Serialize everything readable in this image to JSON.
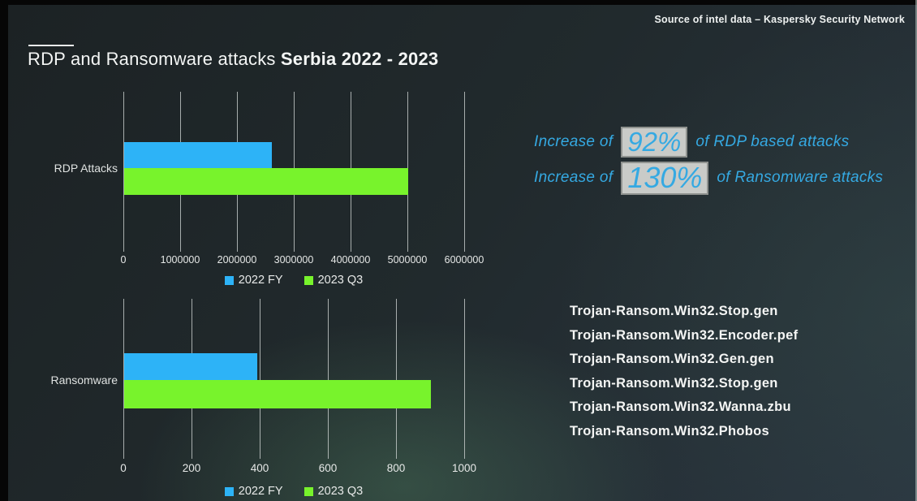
{
  "header": {
    "title_regular": "RDP and Ransomware attacks ",
    "title_bold": "Serbia 2022 - 2023",
    "source_note": "Source of intel data – Kaspersky Security Network"
  },
  "highlights": [
    {
      "prefix": "Increase of",
      "value": "92%",
      "suffix": "of RDP based attacks"
    },
    {
      "prefix": "Increase of",
      "value": "130%",
      "suffix": "of Ransomware attacks"
    }
  ],
  "trojan_list": [
    "Trojan-Ransom.Win32.Stop.gen",
    "Trojan-Ransom.Win32.Encoder.pef",
    "Trojan-Ransom.Win32.Gen.gen",
    "Trojan-Ransom.Win32.Stop.gen",
    "Trojan-Ransom.Win32.Wanna.zbu",
    "Trojan-Ransom.Win32.Phobos"
  ],
  "colors": {
    "bar_2022": "#2db3f7",
    "bar_2023": "#78f32c",
    "accent_text": "#35a9e2",
    "highlight_box_bg": "#c9cbc8",
    "highlight_box_border": "#8f928f"
  },
  "chart_data": [
    {
      "type": "bar",
      "orientation": "horizontal",
      "category": "RDP Attacks",
      "series": [
        {
          "name": "2022 FY",
          "value": 2600000
        },
        {
          "name": "2023 Q3",
          "value": 5000000
        }
      ],
      "xlim": [
        0,
        6000000
      ],
      "xticks": [
        "0",
        "1000000",
        "2000000",
        "3000000",
        "4000000",
        "5000000",
        "6000000"
      ],
      "grid": true,
      "legend": [
        "2022 FY",
        "2023 Q3"
      ],
      "legend_position": "bottom"
    },
    {
      "type": "bar",
      "orientation": "horizontal",
      "category": "Ransomware",
      "series": [
        {
          "name": "2022 FY",
          "value": 390
        },
        {
          "name": "2023 Q3",
          "value": 900
        }
      ],
      "xlim": [
        0,
        1000
      ],
      "xticks": [
        "0",
        "200",
        "400",
        "600",
        "800",
        "1000"
      ],
      "grid": true,
      "legend": [
        "2022 FY",
        "2023 Q3"
      ],
      "legend_position": "bottom"
    }
  ]
}
